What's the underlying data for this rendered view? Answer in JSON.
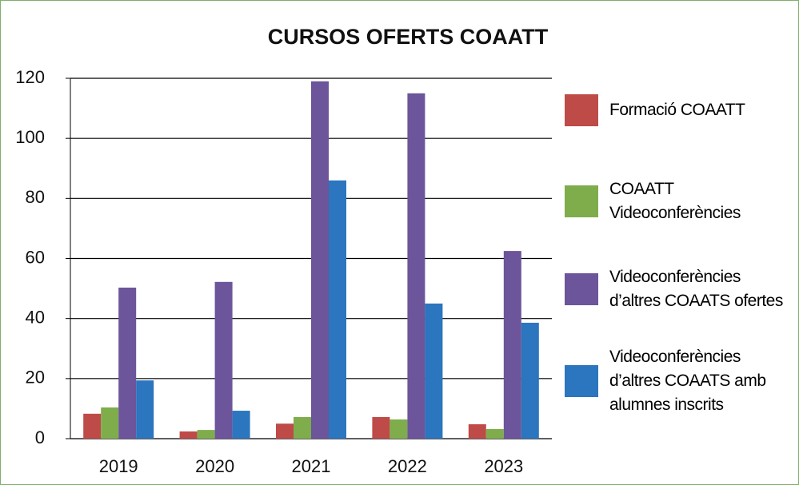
{
  "chart_data": {
    "type": "bar",
    "title": "CURSOS OFERTS COAATT",
    "categories": [
      "2019",
      "2020",
      "2021",
      "2022",
      "2023"
    ],
    "series": [
      {
        "name": "Formació COAATT",
        "color": "#be4b48",
        "values": [
          8.3,
          2.4,
          5,
          7.2,
          4.8
        ]
      },
      {
        "name": "COAATT Videoconferències",
        "color": "#7fad4c",
        "values": [
          10.4,
          2.9,
          7.2,
          6.4,
          3.2
        ]
      },
      {
        "name": "Videoconferències d’altres COAATS ofertes",
        "color": "#6c559a",
        "values": [
          50.3,
          52.2,
          119,
          115,
          62.5
        ]
      },
      {
        "name": "Videoconferències d’altres COAATS amb alumnes inscrits",
        "color": "#2c75bf",
        "values": [
          19.4,
          9.3,
          86,
          45,
          38.6
        ]
      }
    ],
    "ylim": [
      0,
      120
    ],
    "yticks": [
      0,
      20,
      40,
      60,
      80,
      100,
      120
    ],
    "grid": true,
    "legend": "right"
  }
}
